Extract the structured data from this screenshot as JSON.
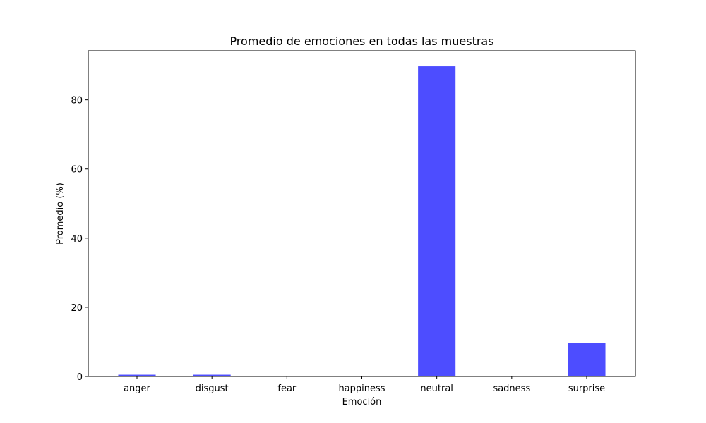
{
  "chart_data": {
    "type": "bar",
    "title": "Promedio de emociones en todas las muestras",
    "xlabel": "Emoción",
    "ylabel": "Promedio (%)",
    "categories": [
      "anger",
      "disgust",
      "fear",
      "happiness",
      "neutral",
      "sadness",
      "surprise"
    ],
    "values": [
      0.5,
      0.5,
      0.0,
      0.0,
      89.7,
      0.0,
      9.6
    ],
    "ylim": [
      0,
      94.2
    ],
    "yticks": [
      0,
      20,
      40,
      60,
      80
    ],
    "bar_color": "#4d4dff",
    "grid": false,
    "legend": "none"
  }
}
